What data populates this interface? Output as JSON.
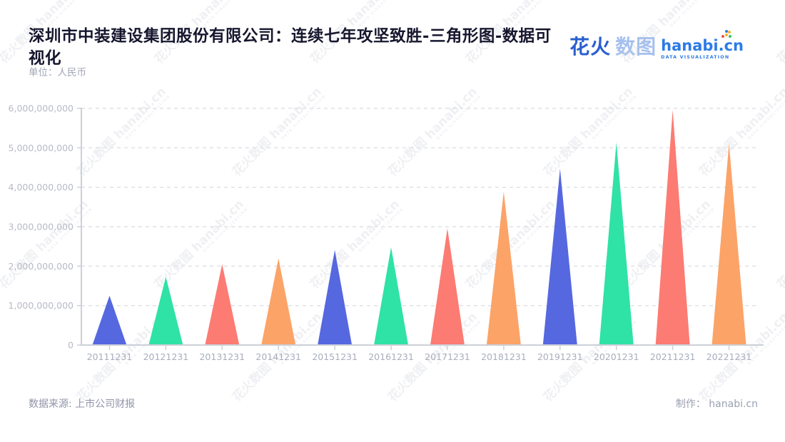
{
  "header": {
    "title_line1": "深圳市中装建设集团股份有限公司：连续七年攻坚致胜-三角形图-数据可",
    "title_line2": "视化",
    "unit_label": "单位：人民币"
  },
  "logo": {
    "zh_part1": "花火",
    "zh_part2": "数图",
    "domain": "hanabi.cn",
    "tagline": "DATA VISUALIZATION"
  },
  "watermark": {
    "text": "花火数图 hanabi.cn",
    "subtext": "DATA VISUALIZATION"
  },
  "footer": {
    "source": "数据来源: 上市公司财报",
    "credit": "制作： hanabi.cn"
  },
  "chart_data": {
    "type": "bar",
    "shape": "triangle",
    "title": "深圳市中装建设集团股份有限公司：连续七年攻坚致胜-三角形图-数据可视化",
    "unit": "人民币",
    "categories": [
      "20111231",
      "20121231",
      "20131231",
      "20141231",
      "20151231",
      "20161231",
      "20171231",
      "20181231",
      "20191231",
      "20201231",
      "20211231",
      "20221231"
    ],
    "values": [
      1250000000,
      1730000000,
      2050000000,
      2200000000,
      2410000000,
      2480000000,
      2960000000,
      3890000000,
      4470000000,
      5140000000,
      5960000000,
      5110000000
    ],
    "palette": [
      "#5568e0",
      "#2fe2a5",
      "#fc7b73",
      "#fca368"
    ],
    "ylim": [
      0,
      6000000000
    ],
    "y_tick_labels": [
      "0",
      "1,000,000,000",
      "2,000,000,000",
      "3,000,000,000",
      "4,000,000,000",
      "5,000,000,000",
      "6,000,000,000"
    ],
    "xlabel": "",
    "ylabel": "",
    "grid": "horizontal-dashed",
    "legend": "none"
  }
}
